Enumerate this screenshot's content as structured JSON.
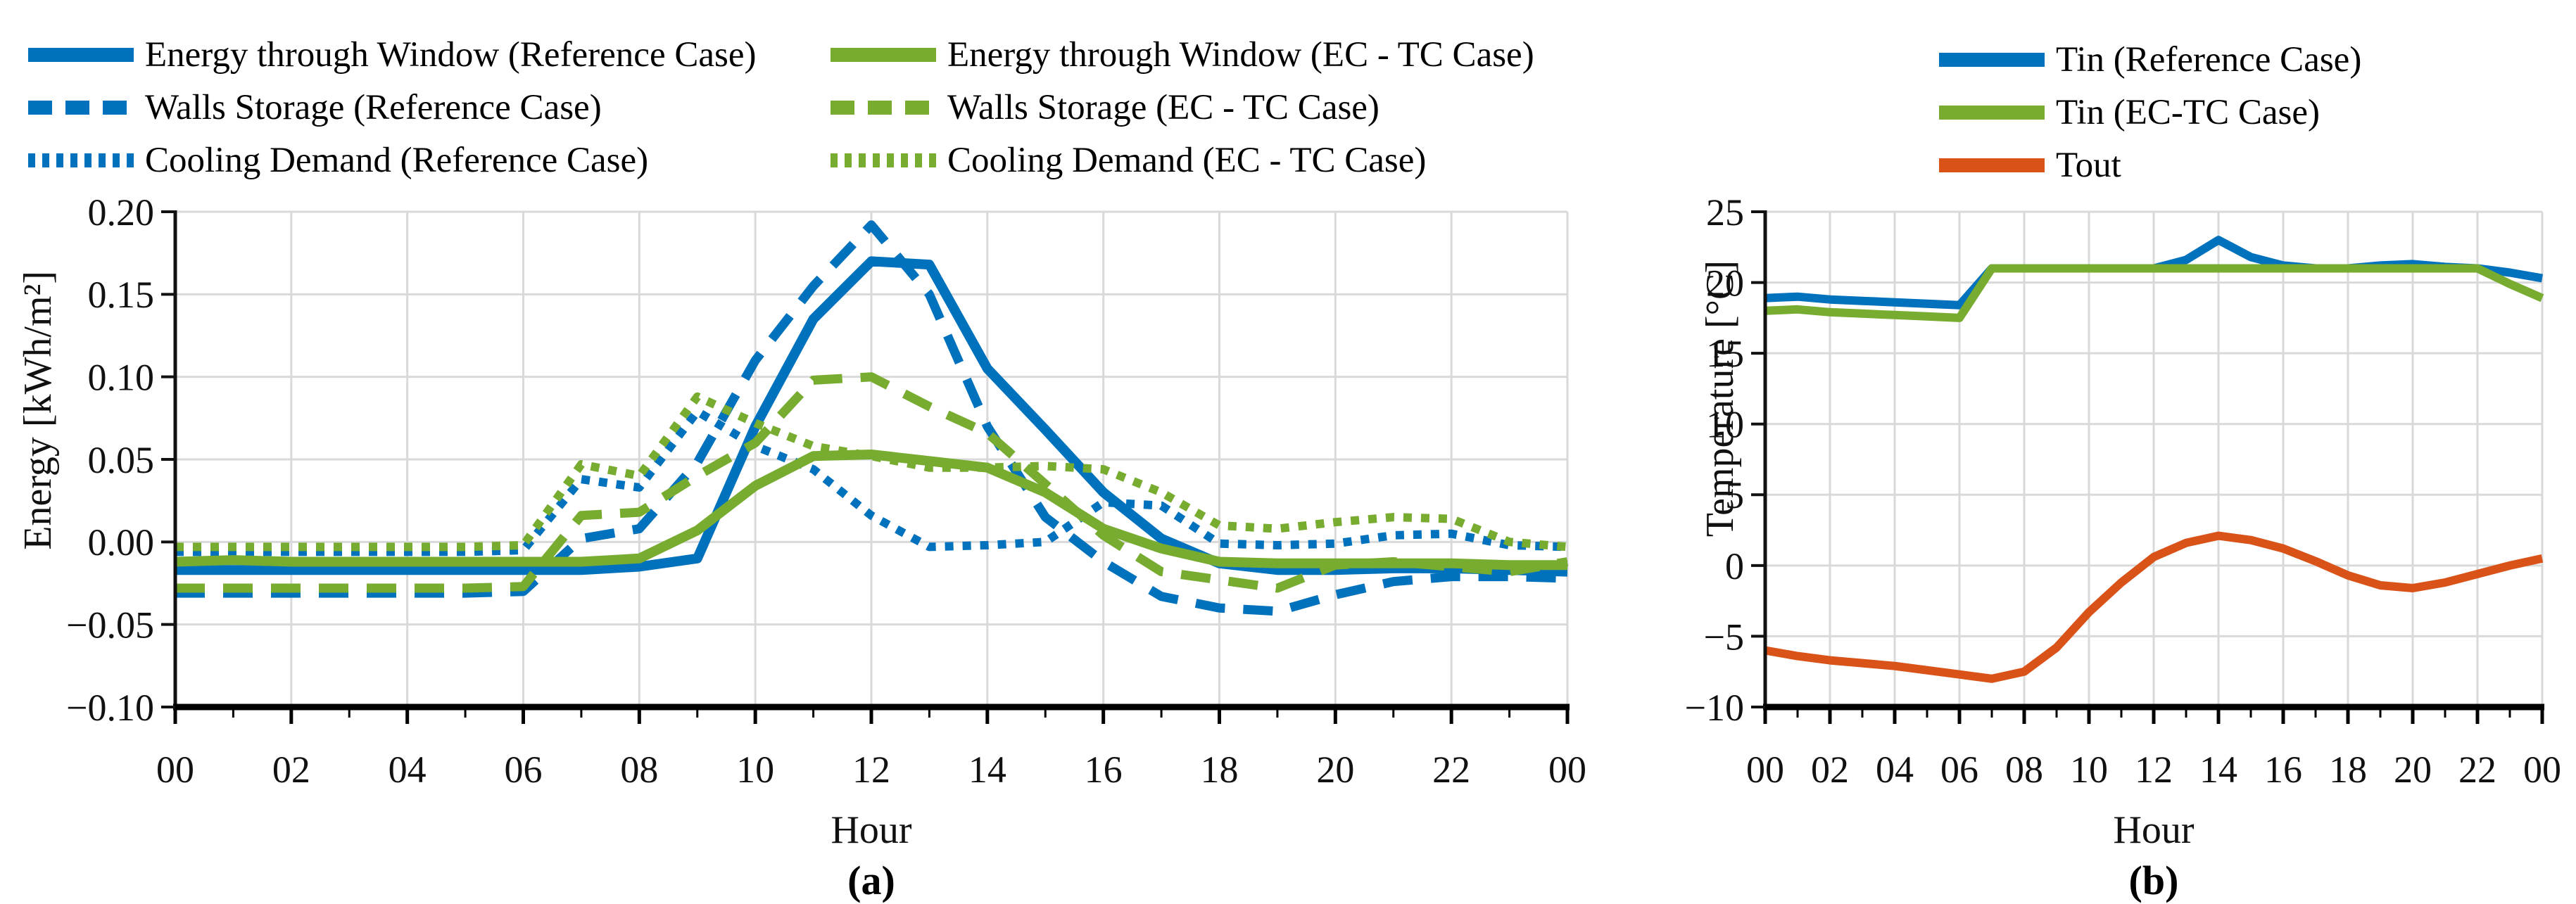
{
  "figure": {
    "panel_a": {
      "caption": "(a)",
      "xlabel": "Hour",
      "ylabel": "Energy [kWh/m²]"
    },
    "panel_b": {
      "caption": "(b)",
      "xlabel": "Hour",
      "ylabel": "Temperature [°C]"
    }
  },
  "colors": {
    "blue": "#0072BD",
    "green": "#77AC30",
    "orange": "#D95319",
    "grid": "#D9D9D9",
    "axis": "#111111"
  },
  "chart_data": [
    {
      "type": "line",
      "title": "",
      "xlabel": "Hour",
      "ylabel": "Energy [kWh/m²]",
      "caption": "(a)",
      "xlim": [
        0,
        24
      ],
      "ylim": [
        -0.1,
        0.2
      ],
      "grid": true,
      "legend_position": "above",
      "x_hours": [
        0,
        1,
        2,
        3,
        4,
        5,
        6,
        7,
        8,
        9,
        10,
        11,
        12,
        13,
        14,
        15,
        16,
        17,
        18,
        19,
        20,
        21,
        22,
        23,
        24
      ],
      "xtick_hours": [
        0,
        2,
        4,
        6,
        8,
        10,
        12,
        14,
        16,
        18,
        20,
        22,
        24
      ],
      "xtick_labels": [
        "00",
        "02",
        "04",
        "06",
        "08",
        "10",
        "12",
        "14",
        "16",
        "18",
        "20",
        "22",
        "00"
      ],
      "ytick_values": [
        0.2,
        0.15,
        0.1,
        0.05,
        0.0,
        -0.05,
        -0.1
      ],
      "ytick_labels": [
        "0.20",
        "0.15",
        "0.10",
        "0.05",
        "0.00",
        "−0.05",
        "−0.10"
      ],
      "series": [
        {
          "name": "Energy through Window (Reference Case)",
          "color": "#0072BD",
          "dash": "solid",
          "values": [
            -0.017,
            -0.017,
            -0.017,
            -0.017,
            -0.017,
            -0.017,
            -0.017,
            -0.017,
            -0.015,
            -0.01,
            0.07,
            0.135,
            0.17,
            0.168,
            0.105,
            0.068,
            0.03,
            0.002,
            -0.013,
            -0.017,
            -0.017,
            -0.016,
            -0.016,
            -0.017,
            -0.018
          ]
        },
        {
          "name": "Walls Storage (Reference Case)",
          "color": "#0072BD",
          "dash": "dashed",
          "values": [
            -0.031,
            -0.031,
            -0.031,
            -0.031,
            -0.031,
            -0.031,
            -0.03,
            0.002,
            0.008,
            0.048,
            0.11,
            0.155,
            0.192,
            0.15,
            0.07,
            0.015,
            -0.012,
            -0.033,
            -0.04,
            -0.042,
            -0.032,
            -0.024,
            -0.021,
            -0.021,
            -0.022
          ]
        },
        {
          "name": "Cooling Demand (Reference Case)",
          "color": "#0072BD",
          "dash": "dotted",
          "values": [
            -0.006,
            -0.006,
            -0.006,
            -0.006,
            -0.006,
            -0.006,
            -0.005,
            0.038,
            0.033,
            0.079,
            0.058,
            0.044,
            0.016,
            -0.003,
            -0.002,
            0.0,
            0.024,
            0.022,
            -0.001,
            -0.002,
            -0.001,
            0.004,
            0.005,
            -0.002,
            -0.003
          ]
        },
        {
          "name": "Energy through Window (EC - TC Case)",
          "color": "#77AC30",
          "dash": "solid",
          "values": [
            -0.012,
            -0.011,
            -0.012,
            -0.012,
            -0.012,
            -0.012,
            -0.012,
            -0.012,
            -0.01,
            0.007,
            0.034,
            0.052,
            0.053,
            0.049,
            0.045,
            0.03,
            0.008,
            -0.004,
            -0.012,
            -0.013,
            -0.013,
            -0.013,
            -0.013,
            -0.014,
            -0.014
          ]
        },
        {
          "name": "Walls Storage (EC - TC Case)",
          "color": "#77AC30",
          "dash": "dashed",
          "values": [
            -0.028,
            -0.028,
            -0.028,
            -0.028,
            -0.028,
            -0.028,
            -0.027,
            0.016,
            0.018,
            0.04,
            0.06,
            0.098,
            0.1,
            0.082,
            0.066,
            0.035,
            0.004,
            -0.018,
            -0.023,
            -0.028,
            -0.014,
            -0.012,
            -0.015,
            -0.018,
            -0.012
          ]
        },
        {
          "name": "Cooling Demand (EC - TC Case)",
          "color": "#77AC30",
          "dash": "dotted",
          "values": [
            -0.003,
            -0.003,
            -0.003,
            -0.003,
            -0.003,
            -0.003,
            -0.002,
            0.047,
            0.04,
            0.088,
            0.072,
            0.058,
            0.052,
            0.045,
            0.045,
            0.046,
            0.044,
            0.03,
            0.01,
            0.008,
            0.012,
            0.015,
            0.014,
            0.0,
            -0.003
          ]
        }
      ]
    },
    {
      "type": "line",
      "title": "",
      "xlabel": "Hour",
      "ylabel": "Temperature [°C]",
      "caption": "(b)",
      "xlim": [
        0,
        24
      ],
      "ylim": [
        -10,
        25
      ],
      "grid": true,
      "legend_position": "above",
      "x_hours": [
        0,
        1,
        2,
        3,
        4,
        5,
        6,
        7,
        8,
        9,
        10,
        11,
        12,
        13,
        14,
        15,
        16,
        17,
        18,
        19,
        20,
        21,
        22,
        23,
        24
      ],
      "xtick_hours": [
        0,
        2,
        4,
        6,
        8,
        10,
        12,
        14,
        16,
        18,
        20,
        22,
        24
      ],
      "xtick_labels": [
        "00",
        "02",
        "04",
        "06",
        "08",
        "10",
        "12",
        "14",
        "16",
        "18",
        "20",
        "22",
        "00"
      ],
      "ytick_values": [
        25,
        20,
        15,
        10,
        5,
        0,
        -5,
        -10
      ],
      "ytick_labels": [
        "25",
        "20",
        "15",
        "10",
        "5",
        "0",
        "−5",
        "−10"
      ],
      "series": [
        {
          "name": "Tin (Reference Case)",
          "color": "#0072BD",
          "dash": "solid",
          "values": [
            18.9,
            19.0,
            18.8,
            18.7,
            18.6,
            18.5,
            18.4,
            21.0,
            21.0,
            21.0,
            21.0,
            21.0,
            21.0,
            21.6,
            23.0,
            21.8,
            21.2,
            21.0,
            21.0,
            21.2,
            21.3,
            21.1,
            21.0,
            20.7,
            20.3
          ]
        },
        {
          "name": "Tin (EC-TC Case)",
          "color": "#77AC30",
          "dash": "solid",
          "values": [
            18.0,
            18.1,
            17.9,
            17.8,
            17.7,
            17.6,
            17.5,
            21.0,
            21.0,
            21.0,
            21.0,
            21.0,
            21.0,
            21.0,
            21.0,
            21.0,
            21.0,
            21.0,
            21.0,
            21.0,
            21.0,
            21.0,
            21.0,
            19.9,
            18.9
          ]
        },
        {
          "name": "Tout",
          "color": "#D95319",
          "dash": "solid",
          "values": [
            -6.0,
            -6.4,
            -6.7,
            -6.9,
            -7.1,
            -7.4,
            -7.7,
            -8.0,
            -7.5,
            -5.8,
            -3.3,
            -1.2,
            0.6,
            1.6,
            2.1,
            1.8,
            1.2,
            0.3,
            -0.7,
            -1.4,
            -1.6,
            -1.2,
            -0.6,
            0.0,
            0.5
          ]
        }
      ]
    }
  ]
}
